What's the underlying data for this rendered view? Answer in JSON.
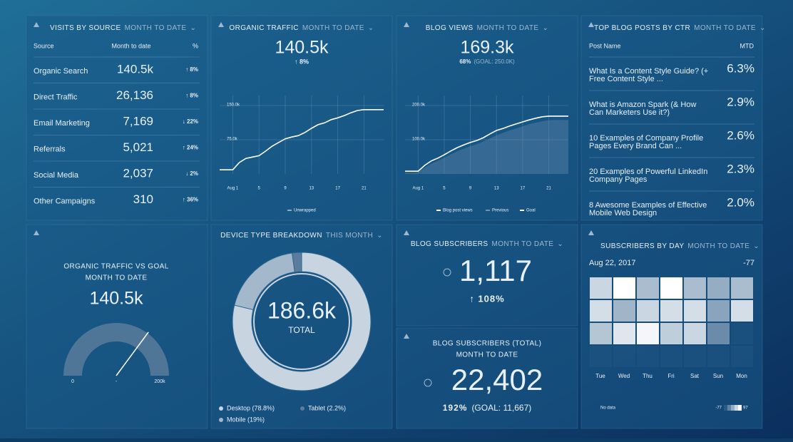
{
  "visits": {
    "title": "VISITS BY SOURCE",
    "subtitle": "MONTH TO DATE",
    "columns": [
      "Source",
      "Month to date",
      "%"
    ],
    "rows": [
      {
        "source": "Organic Search",
        "value": "140.5k",
        "change": "↑ 8%",
        "color": "#4cd07d"
      },
      {
        "source": "Direct Traffic",
        "value": "26,136",
        "change": "↑ 8%",
        "color": "#4cd07d"
      },
      {
        "source": "Email Marketing",
        "value": "7,169",
        "change": "↓ 22%",
        "color": "#e86a6a"
      },
      {
        "source": "Referrals",
        "value": "5,021",
        "change": "↑ 24%",
        "color": "#4cd07d"
      },
      {
        "source": "Social Media",
        "value": "2,037",
        "change": "↓ 2%",
        "color": "#e86a6a"
      },
      {
        "source": "Other Campaigns",
        "value": "310",
        "change": "↑ 36%",
        "color": "#4cd07d"
      }
    ]
  },
  "organic": {
    "title": "ORGANIC TRAFFIC",
    "subtitle": "MONTH TO DATE",
    "value": "140.5k",
    "change": "↑ 8%",
    "chart": {
      "type": "line",
      "x": [
        -1,
        0,
        1,
        2,
        3,
        4,
        5,
        6,
        7,
        8,
        9,
        10,
        11,
        12,
        13,
        14,
        15,
        16,
        17,
        18,
        19,
        20,
        21,
        22,
        23,
        24
      ],
      "xlim": [
        -1,
        24
      ],
      "xticks": [
        {
          "value": 1,
          "label": "Aug 1"
        },
        5,
        9,
        13,
        17,
        21
      ],
      "ylim": [
        0,
        187500
      ],
      "yticks": [
        {
          "value": 75000,
          "label": "75.0k"
        },
        {
          "value": 150000,
          "label": "150.0k"
        }
      ],
      "series": [
        {
          "name": "Unwrapped",
          "color": "#ffffff",
          "values": [
            9000,
            9000,
            9000,
            25000,
            34000,
            37000,
            40000,
            50000,
            61000,
            69000,
            77000,
            81000,
            84000,
            91000,
            100000,
            108000,
            112000,
            119000,
            123000,
            128000,
            134000,
            139000,
            141000,
            141000,
            141000,
            141000
          ]
        }
      ]
    }
  },
  "blog": {
    "title": "BLOG VIEWS",
    "subtitle": "MONTH TO DATE",
    "value": "169.3k",
    "percent": "68%",
    "goal": "(GOAL: 250.0K)",
    "chart": {
      "type": "line",
      "x": [
        -1,
        0,
        1,
        2,
        3,
        4,
        5,
        6,
        7,
        8,
        9,
        10,
        11,
        12,
        13,
        14,
        15,
        16,
        17,
        18,
        19,
        20,
        21,
        22,
        23,
        24
      ],
      "xlim": [
        -1,
        24
      ],
      "xticks": [
        {
          "value": 1,
          "label": "Aug 1"
        },
        5,
        9,
        13,
        17,
        21
      ],
      "ylim": [
        0,
        250000
      ],
      "yticks": [
        {
          "value": 100000,
          "label": "100.0k"
        },
        {
          "value": 200000,
          "label": "200.0k"
        }
      ],
      "series": [
        {
          "name": "Blog post views",
          "color": "#ffffff",
          "values": [
            8000,
            8000,
            8000,
            25000,
            38000,
            46000,
            56000,
            67000,
            77000,
            85000,
            92000,
            98000,
            106000,
            117000,
            127000,
            133000,
            140000,
            146000,
            152000,
            158000,
            163000,
            167000,
            169000,
            169000,
            169000,
            169000
          ]
        },
        {
          "name": "Previous",
          "color": "#6f93b4",
          "values": [
            4000,
            4000,
            5000,
            18000,
            30000,
            38000,
            47000,
            57000,
            66000,
            74000,
            81000,
            87000,
            95000,
            104000,
            113000,
            120000,
            127000,
            133000,
            139000,
            145000,
            150000,
            154000,
            157000,
            158000,
            158000,
            158000
          ]
        }
      ],
      "goal_name": "Goal"
    }
  },
  "posts": {
    "title": "TOP BLOG POSTS BY CTR",
    "subtitle": "MONTH TO DATE",
    "columns": [
      "Post Name",
      "MTD"
    ],
    "rows": [
      [
        "What Is a Content Style Guide? (+",
        "Free Content Style ...",
        "6.3%"
      ],
      [
        "What is Amazon Spark (& How",
        "Can Marketers Use it?)",
        "2.9%"
      ],
      [
        "10 Examples of Company Profile",
        "Pages Every Brand Can ...",
        "2.6%"
      ],
      [
        "20 Examples of Powerful LinkedIn",
        "Company Pages",
        "2.3%"
      ],
      [
        "8 Awesome Examples of Effective",
        "Mobile Web Design",
        "2.0%"
      ]
    ]
  },
  "gauge": {
    "title": "ORGANIC TRAFFIC VS GOAL",
    "subtitle": "MONTH TO DATE",
    "value": 140500,
    "value_label": "140.5k",
    "min": 0,
    "max": {
      "value": 200000,
      "label": "200k"
    },
    "mid_label": "-"
  },
  "device": {
    "title": "DEVICE TYPE BREAKDOWN",
    "subtitle": "THIS MONTH",
    "total": "186.6k",
    "total_label": "TOTAL",
    "chart": {
      "type": "pie",
      "categories": [
        "Desktop (78.8%)",
        "Mobile (19%)",
        "Tablet (2.2%)"
      ],
      "values": [
        78.8,
        19,
        2.2
      ],
      "colors": [
        "#c8d5e1",
        "#a3b8cb",
        "#5c7c9c"
      ]
    }
  },
  "subscribers": {
    "title": "BLOG SUBSCRIBERS",
    "subtitle": "MONTH TO DATE",
    "value": "1,117",
    "change": "↑ 108%"
  },
  "subscribers_total": {
    "title": "BLOG SUBSCRIBERS (TOTAL)",
    "subtitle": "MONTH TO DATE",
    "value": "22,402",
    "percent": "192%",
    "goal": "(GOAL: 11,667)"
  },
  "by_day": {
    "title": "SUBSCRIBERS BY DAY",
    "subtitle": "MONTH TO DATE",
    "date": "Aug 22, 2017",
    "date_value": "-77",
    "chart": {
      "type": "heatmap",
      "columns": [
        "Tue",
        "Wed",
        "Thu",
        "Fri",
        "Sat",
        "Sun",
        "Mon"
      ],
      "values": [
        [
          54,
          97,
          27,
          97,
          27,
          10,
          27
        ],
        [
          62,
          19,
          54,
          62,
          62,
          1,
          62
        ],
        [
          36,
          71,
          88,
          45,
          54,
          -25,
          null
        ],
        [
          null,
          null,
          null,
          null,
          null,
          null,
          null
        ]
      ],
      "scale": [
        -77,
        97
      ],
      "no_data": "No data"
    }
  }
}
